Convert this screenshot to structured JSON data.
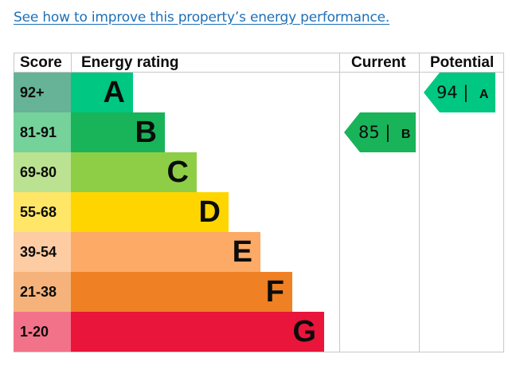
{
  "link": {
    "text": "See how to improve this property’s energy performance."
  },
  "table": {
    "headers": {
      "score": "Score",
      "energy_rating": "Energy rating",
      "current": "Current",
      "potential": "Potential"
    },
    "bands": [
      {
        "score": "92+",
        "letter": "A",
        "color": "#008054",
        "score_bg": "#66b397"
      },
      {
        "score": "81-91",
        "letter": "B",
        "color": "#19b459",
        "score_bg": "#75d29b"
      },
      {
        "score": "69-80",
        "letter": "C",
        "color": "#8dce46",
        "score_bg": "#bbe290"
      },
      {
        "score": "55-68",
        "letter": "D",
        "color": "#ffd500",
        "score_bg": "#ffe666"
      },
      {
        "score": "39-54",
        "letter": "E",
        "color": "#fcaa65",
        "score_bg": "#fdcca3"
      },
      {
        "score": "21-38",
        "letter": "F",
        "color": "#ef8023",
        "score_bg": "#f5b37b"
      },
      {
        "score": "1-20",
        "letter": "G",
        "color": "#e9153b",
        "score_bg": "#f27389"
      }
    ],
    "current": {
      "value": "85 |",
      "letter": "B",
      "color": "#19b459",
      "band_index": 1
    },
    "potential": {
      "value": "94 |",
      "letter": "A",
      "color": "#00c781",
      "band_index": 0
    }
  },
  "colors": {
    "link": "#1d70b8",
    "band_a": "#00c781"
  }
}
